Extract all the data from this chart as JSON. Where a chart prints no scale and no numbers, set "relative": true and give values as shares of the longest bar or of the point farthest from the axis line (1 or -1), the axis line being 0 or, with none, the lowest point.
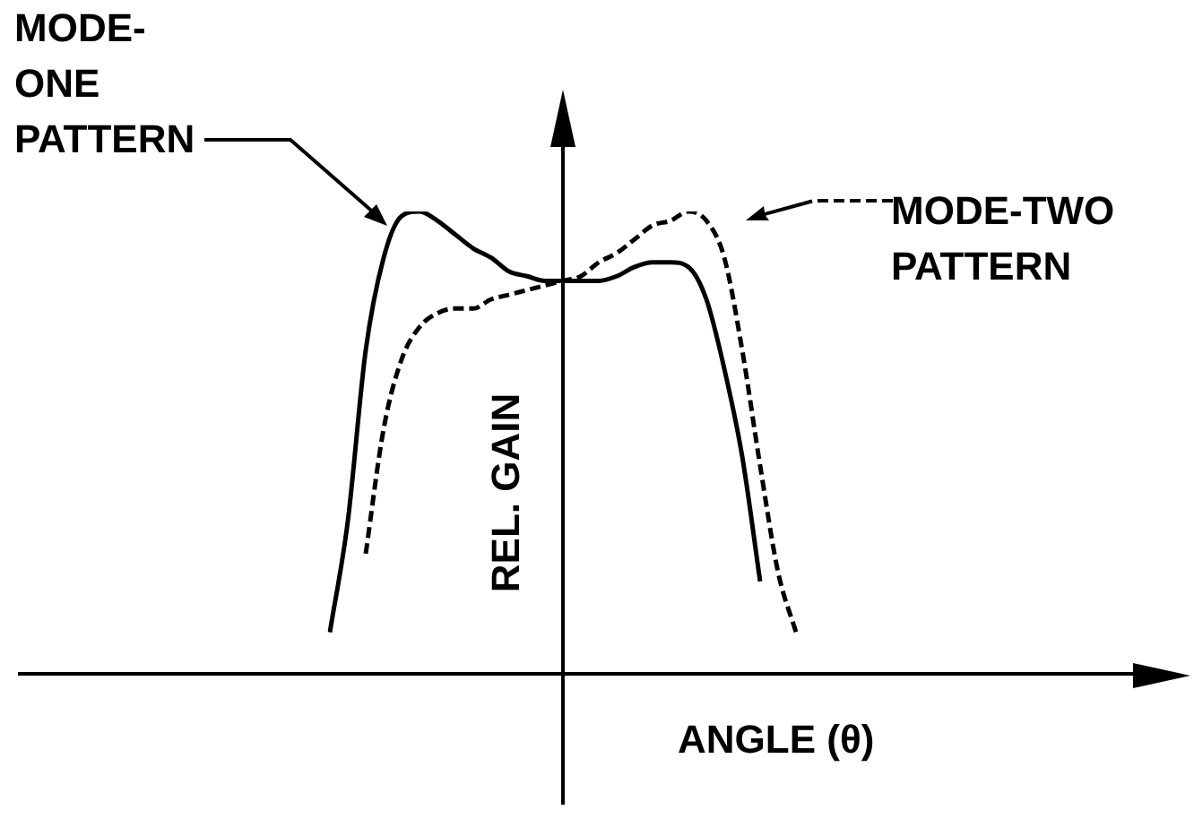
{
  "chart_data": {
    "type": "line",
    "relative": true,
    "xlabel": "ANGLE (θ)",
    "ylabel": "REL. GAIN",
    "legend": "top",
    "marker": "none",
    "categories": [
      null,
      null,
      null,
      null,
      null,
      null,
      null,
      null,
      null,
      null,
      null,
      null,
      null,
      null,
      null,
      null,
      null,
      null,
      null,
      null,
      null,
      null,
      null,
      null,
      null,
      null,
      null
    ],
    "series": [
      {
        "name": "MODE-ONE PATTERN",
        "color": "#000000",
        "line_style": "solid",
        "values": [
          0.09,
          0.33,
          0.7,
          0.9,
          0.99,
          1.0,
          0.98,
          0.95,
          0.92,
          0.9,
          0.87,
          0.86,
          0.85,
          0.85,
          0.85,
          0.85,
          0.86,
          0.88,
          0.89,
          0.89,
          0.88,
          0.81,
          0.66,
          0.47,
          0.2,
          null,
          null
        ]
      },
      {
        "name": "MODE-TWO PATTERN",
        "color": "#000000",
        "line_style": "dashed",
        "values": [
          null,
          null,
          0.26,
          0.53,
          0.68,
          0.75,
          0.78,
          0.79,
          0.79,
          0.81,
          0.82,
          0.83,
          0.84,
          0.85,
          0.86,
          0.89,
          0.91,
          0.94,
          0.97,
          0.98,
          1.0,
          0.98,
          0.9,
          0.7,
          0.45,
          0.22,
          0.09
        ]
      }
    ]
  }
}
